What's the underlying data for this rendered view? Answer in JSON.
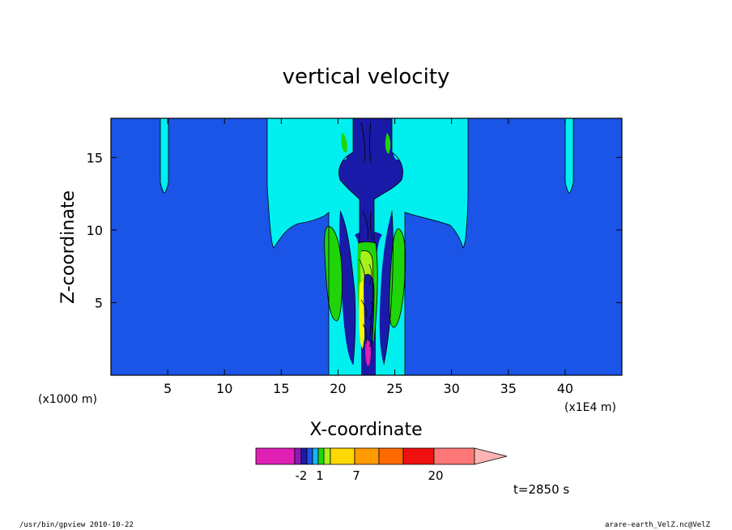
{
  "chart_data": {
    "type": "contour",
    "title": "vertical velocity",
    "xlabel": "X-coordinate",
    "ylabel": "Z-coordinate",
    "x_unit_left": "(x1000 m)",
    "x_unit_right": "(x1E4 m)",
    "xlim": [
      0,
      45
    ],
    "ylim": [
      0,
      17.7
    ],
    "xticks": [
      "5",
      "10",
      "15",
      "20",
      "25",
      "30",
      "35",
      "40"
    ],
    "yticks": [
      "5",
      "10",
      "15"
    ],
    "time_label": "t=2850 s",
    "colorbar": {
      "labels": [
        "-2",
        "1",
        "7",
        "20"
      ],
      "colors": [
        "#e01fb4",
        "#8a1ab8",
        "#1a1aa8",
        "#1a55e8",
        "#1ab4f0",
        "#1ad80f",
        "#a8f01a",
        "#ffd800",
        "#ff9a00",
        "#ff6a00",
        "#f01010",
        "#ff7878",
        "#ffb4b4"
      ]
    },
    "fill_colors": {
      "background": "#1a55e8",
      "light": "#00f0f0",
      "dark": "#1a1aa8",
      "green": "#20d40a",
      "lime": "#a8f01a",
      "yellow": "#f8f800",
      "magenta": "#e01fb4"
    }
  },
  "footer": {
    "left": "/usr/bin/gpview  2010-10-22",
    "right": "arare-earth_VelZ.nc@VelZ"
  }
}
